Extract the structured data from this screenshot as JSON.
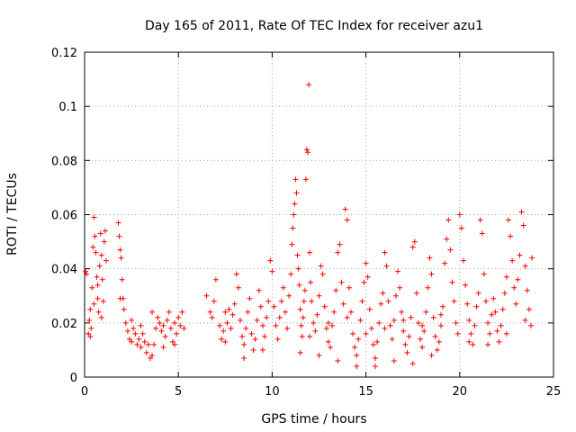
{
  "chart_data": {
    "type": "scatter",
    "title": "Day 165 of 2011, Rate Of TEC Index for receiver azu1",
    "xlabel": "GPS time / hours",
    "ylabel": "ROTI / TECUs",
    "xlim": [
      0,
      25
    ],
    "ylim": [
      0,
      0.12
    ],
    "xticks": [
      "0",
      "5",
      "10",
      "15",
      "20",
      "25"
    ],
    "yticks": [
      "0",
      "0.02",
      "0.04",
      "0.06",
      "0.08",
      "0.1",
      "0.12"
    ],
    "grid": true,
    "marker": "+",
    "marker_color": "#ff0000",
    "series": [
      {
        "points": [
          [
            0.05,
            0.039
          ],
          [
            0.1,
            0.038
          ],
          [
            0.2,
            0.016
          ],
          [
            0.25,
            0.021
          ],
          [
            0.3,
            0.025
          ],
          [
            0.35,
            0.018
          ],
          [
            0.4,
            0.033
          ],
          [
            0.45,
            0.048
          ],
          [
            0.5,
            0.059
          ],
          [
            0.55,
            0.052
          ],
          [
            0.6,
            0.046
          ],
          [
            0.65,
            0.037
          ],
          [
            0.7,
            0.029
          ],
          [
            0.75,
            0.024
          ],
          [
            0.8,
            0.041
          ],
          [
            0.85,
            0.053
          ],
          [
            0.9,
            0.045
          ],
          [
            0.95,
            0.036
          ],
          [
            1.0,
            0.028
          ],
          [
            1.05,
            0.05
          ],
          [
            1.1,
            0.054
          ],
          [
            1.15,
            0.043
          ],
          [
            0.3,
            0.015
          ],
          [
            0.5,
            0.027
          ],
          [
            0.7,
            0.034
          ],
          [
            0.9,
            0.022
          ],
          [
            1.8,
            0.057
          ],
          [
            1.85,
            0.052
          ],
          [
            1.9,
            0.047
          ],
          [
            1.95,
            0.044
          ],
          [
            2.0,
            0.036
          ],
          [
            2.05,
            0.029
          ],
          [
            1.9,
            0.029
          ],
          [
            2.1,
            0.025
          ],
          [
            2.2,
            0.02
          ],
          [
            2.3,
            0.017
          ],
          [
            2.4,
            0.014
          ],
          [
            2.5,
            0.013
          ],
          [
            2.6,
            0.018
          ],
          [
            2.7,
            0.016
          ],
          [
            2.8,
            0.012
          ],
          [
            2.9,
            0.014
          ],
          [
            3.0,
            0.011
          ],
          [
            3.1,
            0.016
          ],
          [
            3.2,
            0.013
          ],
          [
            3.3,
            0.009
          ],
          [
            3.4,
            0.012
          ],
          [
            3.5,
            0.007
          ],
          [
            3.6,
            0.008
          ],
          [
            3.7,
            0.012
          ],
          [
            3.8,
            0.018
          ],
          [
            3.9,
            0.022
          ],
          [
            4.0,
            0.02
          ],
          [
            4.1,
            0.017
          ],
          [
            4.2,
            0.019
          ],
          [
            4.3,
            0.015
          ],
          [
            4.4,
            0.021
          ],
          [
            4.5,
            0.024
          ],
          [
            4.6,
            0.018
          ],
          [
            4.7,
            0.013
          ],
          [
            4.8,
            0.02
          ],
          [
            4.9,
            0.016
          ],
          [
            5.0,
            0.022
          ],
          [
            5.1,
            0.019
          ],
          [
            5.2,
            0.024
          ],
          [
            5.3,
            0.018
          ],
          [
            2.5,
            0.021
          ],
          [
            3.0,
            0.019
          ],
          [
            3.6,
            0.024
          ],
          [
            4.2,
            0.011
          ],
          [
            4.8,
            0.012
          ],
          [
            6.5,
            0.03
          ],
          [
            6.7,
            0.024
          ],
          [
            6.8,
            0.022
          ],
          [
            6.9,
            0.028
          ],
          [
            7.0,
            0.036
          ],
          [
            7.2,
            0.019
          ],
          [
            7.3,
            0.014
          ],
          [
            7.4,
            0.017
          ],
          [
            7.5,
            0.013
          ],
          [
            7.6,
            0.02
          ],
          [
            7.7,
            0.025
          ],
          [
            7.8,
            0.018
          ],
          [
            7.9,
            0.023
          ],
          [
            8.0,
            0.027
          ],
          [
            8.1,
            0.038
          ],
          [
            8.2,
            0.033
          ],
          [
            8.3,
            0.021
          ],
          [
            8.4,
            0.015
          ],
          [
            8.5,
            0.012
          ],
          [
            8.6,
            0.018
          ],
          [
            8.7,
            0.024
          ],
          [
            8.8,
            0.029
          ],
          [
            8.9,
            0.016
          ],
          [
            9.0,
            0.01
          ],
          [
            9.1,
            0.014
          ],
          [
            9.2,
            0.021
          ],
          [
            9.3,
            0.032
          ],
          [
            9.4,
            0.026
          ],
          [
            9.5,
            0.019
          ],
          [
            9.6,
            0.015
          ],
          [
            9.7,
            0.022
          ],
          [
            9.8,
            0.028
          ],
          [
            9.9,
            0.043
          ],
          [
            10.0,
            0.039
          ],
          [
            10.1,
            0.026
          ],
          [
            10.2,
            0.019
          ],
          [
            10.3,
            0.014
          ],
          [
            10.4,
            0.022
          ],
          [
            10.5,
            0.028
          ],
          [
            10.6,
            0.033
          ],
          [
            10.7,
            0.024
          ],
          [
            10.8,
            0.018
          ],
          [
            7.5,
            0.024
          ],
          [
            8.5,
            0.007
          ],
          [
            9.5,
            0.01
          ],
          [
            10.9,
            0.03
          ],
          [
            11.0,
            0.038
          ],
          [
            11.05,
            0.049
          ],
          [
            11.1,
            0.055
          ],
          [
            11.15,
            0.06
          ],
          [
            11.2,
            0.064
          ],
          [
            11.25,
            0.073
          ],
          [
            11.3,
            0.068
          ],
          [
            11.35,
            0.045
          ],
          [
            11.4,
            0.04
          ],
          [
            11.45,
            0.034
          ],
          [
            11.5,
            0.025
          ],
          [
            11.55,
            0.019
          ],
          [
            11.6,
            0.015
          ],
          [
            11.65,
            0.022
          ],
          [
            11.7,
            0.028
          ],
          [
            11.75,
            0.032
          ],
          [
            11.8,
            0.073
          ],
          [
            11.85,
            0.084
          ],
          [
            11.9,
            0.083
          ],
          [
            11.95,
            0.108
          ],
          [
            12.0,
            0.046
          ],
          [
            12.05,
            0.035
          ],
          [
            12.1,
            0.028
          ],
          [
            12.2,
            0.02
          ],
          [
            12.3,
            0.017
          ],
          [
            12.4,
            0.023
          ],
          [
            12.5,
            0.03
          ],
          [
            12.6,
            0.041
          ],
          [
            12.7,
            0.038
          ],
          [
            12.8,
            0.026
          ],
          [
            12.9,
            0.018
          ],
          [
            13.0,
            0.013
          ],
          [
            13.1,
            0.011
          ],
          [
            13.2,
            0.019
          ],
          [
            13.3,
            0.024
          ],
          [
            13.4,
            0.032
          ],
          [
            13.5,
            0.046
          ],
          [
            13.6,
            0.049
          ],
          [
            13.7,
            0.035
          ],
          [
            13.8,
            0.027
          ],
          [
            13.9,
            0.062
          ],
          [
            14.0,
            0.058
          ],
          [
            14.1,
            0.033
          ],
          [
            14.2,
            0.024
          ],
          [
            14.3,
            0.016
          ],
          [
            14.4,
            0.011
          ],
          [
            14.5,
            0.008
          ],
          [
            14.6,
            0.014
          ],
          [
            14.7,
            0.021
          ],
          [
            14.8,
            0.028
          ],
          [
            14.9,
            0.035
          ],
          [
            15.0,
            0.042
          ],
          [
            15.1,
            0.037
          ],
          [
            15.2,
            0.025
          ],
          [
            15.3,
            0.018
          ],
          [
            15.4,
            0.012
          ],
          [
            15.5,
            0.007
          ],
          [
            15.6,
            0.013
          ],
          [
            15.7,
            0.02
          ],
          [
            15.8,
            0.027
          ],
          [
            15.9,
            0.031
          ],
          [
            16.0,
            0.046
          ],
          [
            16.1,
            0.041
          ],
          [
            16.2,
            0.028
          ],
          [
            16.3,
            0.019
          ],
          [
            16.4,
            0.014
          ],
          [
            16.5,
            0.021
          ],
          [
            16.6,
            0.03
          ],
          [
            16.7,
            0.039
          ],
          [
            16.8,
            0.033
          ],
          [
            16.9,
            0.024
          ],
          [
            17.0,
            0.017
          ],
          [
            17.1,
            0.012
          ],
          [
            17.2,
            0.009
          ],
          [
            17.3,
            0.015
          ],
          [
            17.4,
            0.022
          ],
          [
            17.5,
            0.048
          ],
          [
            17.6,
            0.05
          ],
          [
            17.7,
            0.031
          ],
          [
            17.8,
            0.02
          ],
          [
            17.9,
            0.014
          ],
          [
            18.0,
            0.011
          ],
          [
            18.1,
            0.017
          ],
          [
            18.2,
            0.024
          ],
          [
            18.3,
            0.033
          ],
          [
            18.4,
            0.044
          ],
          [
            18.5,
            0.038
          ],
          [
            18.6,
            0.022
          ],
          [
            18.7,
            0.015
          ],
          [
            18.8,
            0.01
          ],
          [
            18.9,
            0.013
          ],
          [
            19.0,
            0.019
          ],
          [
            19.1,
            0.026
          ],
          [
            19.2,
            0.042
          ],
          [
            19.3,
            0.051
          ],
          [
            19.4,
            0.058
          ],
          [
            19.5,
            0.047
          ],
          [
            19.6,
            0.035
          ],
          [
            19.7,
            0.028
          ],
          [
            19.8,
            0.02
          ],
          [
            19.9,
            0.016
          ],
          [
            11.5,
            0.009
          ],
          [
            12.5,
            0.008
          ],
          [
            13.5,
            0.006
          ],
          [
            14.5,
            0.004
          ],
          [
            15.5,
            0.004
          ],
          [
            16.5,
            0.006
          ],
          [
            17.5,
            0.005
          ],
          [
            18.5,
            0.008
          ],
          [
            12.0,
            0.015
          ],
          [
            13.0,
            0.02
          ],
          [
            14.0,
            0.022
          ],
          [
            15.0,
            0.016
          ],
          [
            16.0,
            0.018
          ],
          [
            17.0,
            0.021
          ],
          [
            18.0,
            0.019
          ],
          [
            19.0,
            0.023
          ],
          [
            20.0,
            0.06
          ],
          [
            20.1,
            0.055
          ],
          [
            20.2,
            0.043
          ],
          [
            20.3,
            0.034
          ],
          [
            20.4,
            0.027
          ],
          [
            20.5,
            0.021
          ],
          [
            20.6,
            0.016
          ],
          [
            20.7,
            0.012
          ],
          [
            20.8,
            0.019
          ],
          [
            20.9,
            0.026
          ],
          [
            21.0,
            0.031
          ],
          [
            21.1,
            0.058
          ],
          [
            21.2,
            0.053
          ],
          [
            21.3,
            0.038
          ],
          [
            21.4,
            0.028
          ],
          [
            21.5,
            0.02
          ],
          [
            21.6,
            0.016
          ],
          [
            21.7,
            0.023
          ],
          [
            21.8,
            0.029
          ],
          [
            21.9,
            0.024
          ],
          [
            22.0,
            0.017
          ],
          [
            22.1,
            0.013
          ],
          [
            22.2,
            0.019
          ],
          [
            22.3,
            0.025
          ],
          [
            22.4,
            0.031
          ],
          [
            22.5,
            0.037
          ],
          [
            22.6,
            0.058
          ],
          [
            22.7,
            0.052
          ],
          [
            22.8,
            0.043
          ],
          [
            22.9,
            0.033
          ],
          [
            23.0,
            0.027
          ],
          [
            23.1,
            0.036
          ],
          [
            23.2,
            0.045
          ],
          [
            23.3,
            0.061
          ],
          [
            23.4,
            0.056
          ],
          [
            23.5,
            0.041
          ],
          [
            23.6,
            0.032
          ],
          [
            23.7,
            0.025
          ],
          [
            23.8,
            0.019
          ],
          [
            23.85,
            0.044
          ],
          [
            20.5,
            0.013
          ],
          [
            21.5,
            0.012
          ],
          [
            22.5,
            0.016
          ],
          [
            23.5,
            0.021
          ]
        ]
      }
    ]
  }
}
